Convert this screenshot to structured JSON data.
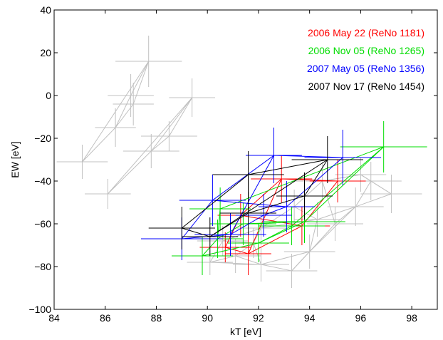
{
  "chart_data": {
    "type": "scatter",
    "title": "",
    "xlabel": "kT [eV]",
    "ylabel": "EW [eV]",
    "xlim": [
      84,
      99
    ],
    "ylim": [
      -100,
      40
    ],
    "xticks": [
      84,
      86,
      88,
      90,
      92,
      94,
      96,
      98
    ],
    "yticks": [
      -100,
      -80,
      -60,
      -40,
      -20,
      0,
      20,
      40
    ],
    "grid": false,
    "legend_position": "top-right",
    "legend": [
      {
        "label": "2006 May 22 (ReNo 1181)",
        "color": "#ff0000"
      },
      {
        "label": "2006 Nov 05 (ReNo 1265)",
        "color": "#00dd00"
      },
      {
        "label": "2007 May 05 (ReNo 1356)",
        "color": "#0000ff"
      },
      {
        "label": "2007 Nov 17 (ReNo 1454)",
        "color": "#000000"
      }
    ],
    "series": [
      {
        "color": "#c0c0c0",
        "points": [
          {
            "x": 85.1,
            "y": -31,
            "xerr": 1.0,
            "yerr": 8
          },
          {
            "x": 86.4,
            "y": -15,
            "xerr": 0.8,
            "yerr": 9
          },
          {
            "x": 87.0,
            "y": 0,
            "xerr": 0.9,
            "yerr": 10
          },
          {
            "x": 87.7,
            "y": 16,
            "xerr": 1.3,
            "yerr": 12
          },
          {
            "x": 87.1,
            "y": -4,
            "xerr": 0.8,
            "yerr": 10
          },
          {
            "x": 86.1,
            "y": -46,
            "xerr": 0.9,
            "yerr": 7
          },
          {
            "x": 87.8,
            "y": -26,
            "xerr": 1.1,
            "yerr": 8
          },
          {
            "x": 88.5,
            "y": -19,
            "xerr": 1.1,
            "yerr": 7
          },
          {
            "x": 89.4,
            "y": -1,
            "xerr": 0.9,
            "yerr": 9
          },
          {
            "x": 90.1,
            "y": -78,
            "xerr": 0.9,
            "yerr": 6
          },
          {
            "x": 91.1,
            "y": -75,
            "xerr": 1.0,
            "yerr": 8
          },
          {
            "x": 92.1,
            "y": -79,
            "xerr": 1.1,
            "yerr": 8
          },
          {
            "x": 93.3,
            "y": -82,
            "xerr": 1.0,
            "yerr": 8
          },
          {
            "x": 94.0,
            "y": -73,
            "xerr": 1.0,
            "yerr": 8
          },
          {
            "x": 95.0,
            "y": -60,
            "xerr": 1.1,
            "yerr": 8
          },
          {
            "x": 95.8,
            "y": -52,
            "xerr": 1.1,
            "yerr": 9
          },
          {
            "x": 96.4,
            "y": -40,
            "xerr": 1.2,
            "yerr": 9
          },
          {
            "x": 97.2,
            "y": -46,
            "xerr": 1.2,
            "yerr": 9
          },
          {
            "x": 96.0,
            "y": -37,
            "xerr": 1.0,
            "yerr": 8
          },
          {
            "x": 94.5,
            "y": -40,
            "xerr": 1.2,
            "yerr": 9
          },
          {
            "x": 93.4,
            "y": -52,
            "xerr": 1.0,
            "yerr": 8
          },
          {
            "x": 92.1,
            "y": -62,
            "xerr": 1.0,
            "yerr": 8
          },
          {
            "x": 90.6,
            "y": -68,
            "xerr": 1.0,
            "yerr": 7
          },
          {
            "x": 91.8,
            "y": -69,
            "xerr": 0.9,
            "yerr": 7
          },
          {
            "x": 94.3,
            "y": -58,
            "xerr": 0.9,
            "yerr": 8
          }
        ],
        "paths": [
          [
            0,
            1,
            2,
            3,
            4,
            1
          ],
          [
            3,
            0
          ],
          [
            5,
            6,
            7,
            8,
            5
          ],
          [
            6,
            8
          ],
          [
            9,
            10,
            11,
            12,
            13,
            14,
            15,
            16,
            17
          ],
          [
            9,
            22,
            21,
            20,
            19,
            18,
            16
          ],
          [
            10,
            23,
            21,
            24,
            15
          ],
          [
            11,
            23,
            22
          ],
          [
            12,
            13,
            24,
            20
          ],
          [
            14,
            19,
            18,
            17
          ],
          [
            9,
            11,
            13,
            15,
            17
          ]
        ]
      },
      {
        "name": "2006 May 22 (ReNo 1181)",
        "color": "#ff0000",
        "points": [
          {
            "x": 90.7,
            "y": -71,
            "xerr": 1.0,
            "yerr": 7
          },
          {
            "x": 91.6,
            "y": -74,
            "xerr": 0.9,
            "yerr": 10
          },
          {
            "x": 93.7,
            "y": -61,
            "xerr": 1.1,
            "yerr": 9
          },
          {
            "x": 95.1,
            "y": -40,
            "xerr": 1.1,
            "yerr": 10
          },
          {
            "x": 92.9,
            "y": -39,
            "xerr": 1.2,
            "yerr": 11
          },
          {
            "x": 91.3,
            "y": -56,
            "xerr": 0.9,
            "yerr": 10
          }
        ],
        "paths": [
          [
            0,
            1,
            2,
            3,
            4,
            5,
            0
          ],
          [
            5,
            2
          ],
          [
            1,
            4
          ]
        ]
      },
      {
        "name": "2006 Nov 05 (ReNo 1265)",
        "color": "#00dd00",
        "points": [
          {
            "x": 89.8,
            "y": -75,
            "xerr": 1.2,
            "yerr": 9
          },
          {
            "x": 91.4,
            "y": -60,
            "xerr": 1.3,
            "yerr": 10
          },
          {
            "x": 93.3,
            "y": -61,
            "xerr": 1.3,
            "yerr": 9
          },
          {
            "x": 93.8,
            "y": -59,
            "xerr": 1.6,
            "yerr": 10
          },
          {
            "x": 96.9,
            "y": -24,
            "xerr": 1.7,
            "yerr": 12
          },
          {
            "x": 92.0,
            "y": -69,
            "xerr": 1.2,
            "yerr": 9
          },
          {
            "x": 90.5,
            "y": -53,
            "xerr": 1.2,
            "yerr": 10
          },
          {
            "x": 90.4,
            "y": -67,
            "xerr": 1.0,
            "yerr": 9
          }
        ],
        "paths": [
          [
            0,
            5,
            2,
            4,
            3,
            1,
            7,
            0
          ],
          [
            7,
            6,
            4
          ],
          [
            5,
            3
          ]
        ]
      },
      {
        "name": "2007 May 05 (ReNo 1356)",
        "color": "#0000ff",
        "points": [
          {
            "x": 89.0,
            "y": -67,
            "xerr": 1.6,
            "yerr": 10
          },
          {
            "x": 90.9,
            "y": -65,
            "xerr": 1.4,
            "yerr": 10
          },
          {
            "x": 92.2,
            "y": -56,
            "xerr": 1.1,
            "yerr": 10
          },
          {
            "x": 93.1,
            "y": -52,
            "xerr": 1.1,
            "yerr": 12
          },
          {
            "x": 95.3,
            "y": -29,
            "xerr": 1.5,
            "yerr": 13
          },
          {
            "x": 92.6,
            "y": -28,
            "xerr": 1.1,
            "yerr": 13
          },
          {
            "x": 90.2,
            "y": -49,
            "xerr": 1.3,
            "yerr": 12
          }
        ],
        "paths": [
          [
            0,
            1,
            2,
            3,
            4,
            5,
            6,
            0
          ],
          [
            6,
            3
          ],
          [
            1,
            5
          ]
        ]
      },
      {
        "name": "2007 Nov 17 (ReNo 1454)",
        "color": "#000000",
        "points": [
          {
            "x": 89.0,
            "y": -62,
            "xerr": 1.3,
            "yerr": 10
          },
          {
            "x": 90.1,
            "y": -66,
            "xerr": 1.1,
            "yerr": 9
          },
          {
            "x": 91.6,
            "y": -55,
            "xerr": 1.1,
            "yerr": 10
          },
          {
            "x": 91.6,
            "y": -37,
            "xerr": 1.4,
            "yerr": 11
          },
          {
            "x": 94.7,
            "y": -30,
            "xerr": 1.4,
            "yerr": 11
          },
          {
            "x": 93.8,
            "y": -47,
            "xerr": 1.1,
            "yerr": 11
          }
        ],
        "paths": [
          [
            0,
            1,
            2,
            5,
            4,
            3,
            0
          ],
          [
            2,
            3
          ],
          [
            1,
            4
          ]
        ]
      }
    ]
  }
}
